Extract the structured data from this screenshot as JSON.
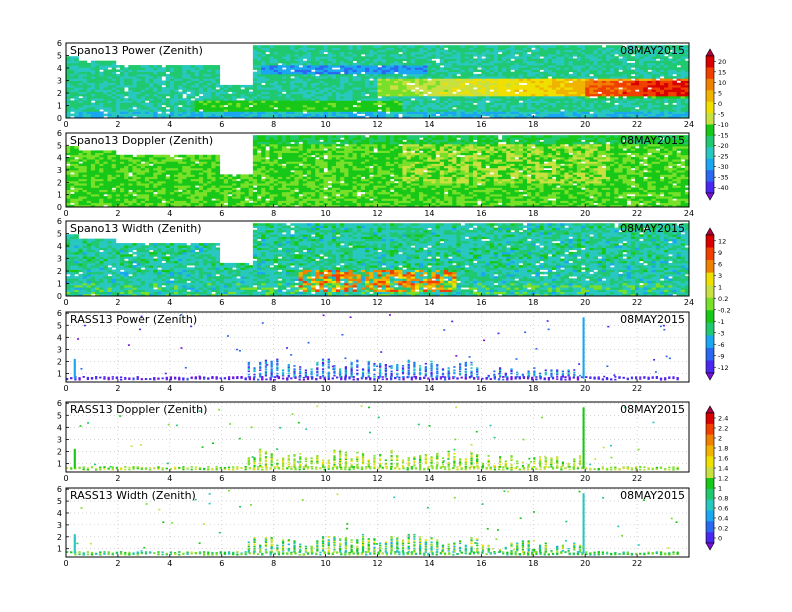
{
  "chart_data": [
    {
      "type": "heatmap",
      "title": "Spano13  Power  (Zenith)",
      "date": "08MAY2015",
      "x_ticks": [
        0,
        2,
        4,
        6,
        8,
        10,
        12,
        14,
        16,
        18,
        20,
        22,
        24
      ],
      "y_ticks": [
        0,
        1,
        2,
        3,
        4,
        5,
        6
      ],
      "xlim": [
        0,
        24
      ],
      "ylim": [
        0,
        6
      ],
      "colorbar_group": 0,
      "style": "power"
    },
    {
      "type": "heatmap",
      "title": "Spano13  Doppler  (Zenith)",
      "date": "08MAY2015",
      "x_ticks": [
        0,
        2,
        4,
        6,
        8,
        10,
        12,
        14,
        16,
        18,
        20,
        22,
        24
      ],
      "y_ticks": [
        0,
        1,
        2,
        3,
        4,
        5,
        6
      ],
      "xlim": [
        0,
        24
      ],
      "ylim": [
        0,
        6
      ],
      "colorbar_group": 0,
      "style": "doppler"
    },
    {
      "type": "heatmap",
      "title": "Spano13  Width  (Zenith)",
      "date": "08MAY2015",
      "x_ticks": [
        0,
        2,
        4,
        6,
        8,
        10,
        12,
        14,
        16,
        18,
        20,
        22,
        24
      ],
      "y_ticks": [
        0,
        1,
        2,
        3,
        4,
        5,
        6
      ],
      "xlim": [
        0,
        24
      ],
      "ylim": [
        0,
        6
      ],
      "colorbar_group": 1,
      "style": "width"
    },
    {
      "type": "scatter",
      "title": "RASS13  Power  (Zenith)",
      "date": "08MAY2015",
      "x_ticks": [
        0,
        2,
        4,
        6,
        8,
        10,
        12,
        14,
        16,
        18,
        20,
        22
      ],
      "y_ticks": [
        1,
        2,
        3,
        4,
        5,
        6
      ],
      "xlim": [
        0,
        24
      ],
      "ylim": [
        0.3,
        6.1
      ],
      "colorbar_group": 1,
      "style": "rass_power"
    },
    {
      "type": "scatter",
      "title": "RASS13  Doppler  (Zenith)",
      "date": "08MAY2015",
      "x_ticks": [
        0,
        2,
        4,
        6,
        8,
        10,
        12,
        14,
        16,
        18,
        20,
        22
      ],
      "y_ticks": [
        1,
        2,
        3,
        4,
        5,
        6
      ],
      "xlim": [
        0,
        24
      ],
      "ylim": [
        0.3,
        6.1
      ],
      "colorbar_group": 2,
      "style": "rass_doppler"
    },
    {
      "type": "scatter",
      "title": "RASS13  Width  (Zenith)",
      "date": "08MAY2015",
      "x_ticks": [
        0,
        2,
        4,
        6,
        8,
        10,
        12,
        14,
        16,
        18,
        20,
        22
      ],
      "y_ticks": [
        1,
        2,
        3,
        4,
        5,
        6
      ],
      "xlim": [
        0,
        24
      ],
      "ylim": [
        0.3,
        6.1
      ],
      "colorbar_group": 2,
      "style": "rass_width"
    }
  ],
  "colorbars": [
    {
      "labels": [
        "20",
        "15",
        "10",
        "5",
        "0",
        "-5",
        "-10",
        "-15",
        "-20",
        "-25",
        "-30",
        "-35",
        "-40"
      ]
    },
    {
      "labels": [
        "12",
        "9",
        "6",
        "3",
        "1",
        "0.2",
        "-0.2",
        "-1",
        "-3",
        "-6",
        "-9",
        "-12"
      ]
    },
    {
      "labels": [
        "2.4",
        "2.2",
        "2",
        "1.8",
        "1.6",
        "1.4",
        "1.2",
        "1",
        "0.8",
        "0.6",
        "0.4",
        "0.2",
        "0"
      ]
    }
  ],
  "palette": [
    "#7a10d8",
    "#4a28f0",
    "#2a68f0",
    "#1aa6f0",
    "#28c8c0",
    "#20c870",
    "#18c818",
    "#78e028",
    "#c8e040",
    "#f0e000",
    "#f0b400",
    "#f08000",
    "#f04000",
    "#d80000",
    "#b00040"
  ]
}
